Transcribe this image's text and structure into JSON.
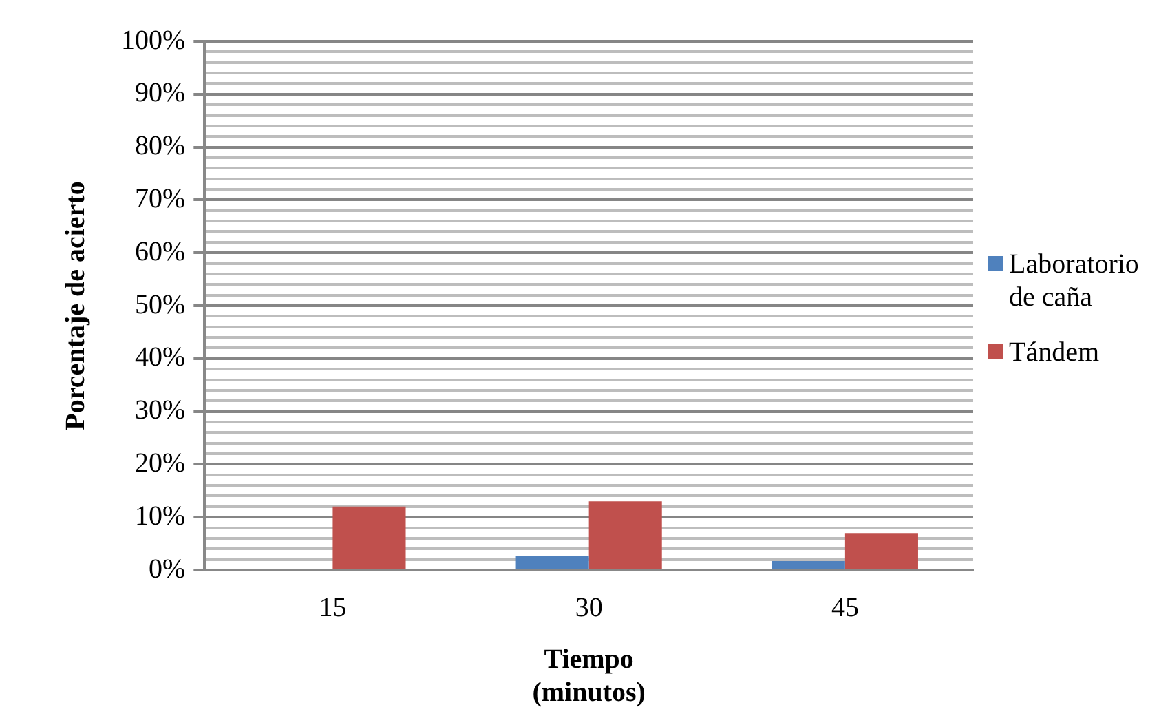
{
  "chart_data": {
    "type": "bar",
    "xlabel": "Tiempo\n(minutos)",
    "ylabel": "Porcentaje de acierto",
    "categories": [
      "15",
      "30",
      "45"
    ],
    "series": [
      {
        "name": "Laboratorio de caña",
        "color": "#4f81bd",
        "values": [
          0,
          2.6,
          1.7
        ]
      },
      {
        "name": "Tándem",
        "color": "#c0504d",
        "values": [
          12,
          13,
          7
        ]
      }
    ],
    "ylim": [
      0,
      100
    ],
    "yticks": [
      {
        "value": 0,
        "label": "0%"
      },
      {
        "value": 2,
        "label": null
      },
      {
        "value": 4,
        "label": null
      },
      {
        "value": 6,
        "label": null
      },
      {
        "value": 8,
        "label": null
      },
      {
        "value": 10,
        "label": "10%"
      },
      {
        "value": 12,
        "label": null
      },
      {
        "value": 14,
        "label": null
      },
      {
        "value": 16,
        "label": null
      },
      {
        "value": 18,
        "label": null
      },
      {
        "value": 20,
        "label": "20%"
      },
      {
        "value": 22,
        "label": null
      },
      {
        "value": 24,
        "label": null
      },
      {
        "value": 26,
        "label": null
      },
      {
        "value": 28,
        "label": null
      },
      {
        "value": 30,
        "label": "30%"
      },
      {
        "value": 32,
        "label": null
      },
      {
        "value": 34,
        "label": null
      },
      {
        "value": 36,
        "label": null
      },
      {
        "value": 38,
        "label": null
      },
      {
        "value": 40,
        "label": "40%"
      },
      {
        "value": 42,
        "label": null
      },
      {
        "value": 44,
        "label": null
      },
      {
        "value": 46,
        "label": null
      },
      {
        "value": 48,
        "label": null
      },
      {
        "value": 50,
        "label": "50%"
      },
      {
        "value": 52,
        "label": null
      },
      {
        "value": 54,
        "label": null
      },
      {
        "value": 56,
        "label": null
      },
      {
        "value": 58,
        "label": null
      },
      {
        "value": 60,
        "label": "60%"
      },
      {
        "value": 62,
        "label": null
      },
      {
        "value": 64,
        "label": null
      },
      {
        "value": 66,
        "label": null
      },
      {
        "value": 68,
        "label": null
      },
      {
        "value": 70,
        "label": "70%"
      },
      {
        "value": 72,
        "label": null
      },
      {
        "value": 74,
        "label": null
      },
      {
        "value": 76,
        "label": null
      },
      {
        "value": 78,
        "label": null
      },
      {
        "value": 80,
        "label": "80%"
      },
      {
        "value": 82,
        "label": null
      },
      {
        "value": 84,
        "label": null
      },
      {
        "value": 86,
        "label": null
      },
      {
        "value": 88,
        "label": null
      },
      {
        "value": 90,
        "label": "90%"
      },
      {
        "value": 92,
        "label": null
      },
      {
        "value": 94,
        "label": null
      },
      {
        "value": 96,
        "label": null
      },
      {
        "value": 98,
        "label": null
      },
      {
        "value": 100,
        "label": "100%"
      }
    ],
    "grid": "y",
    "legend": "right"
  }
}
